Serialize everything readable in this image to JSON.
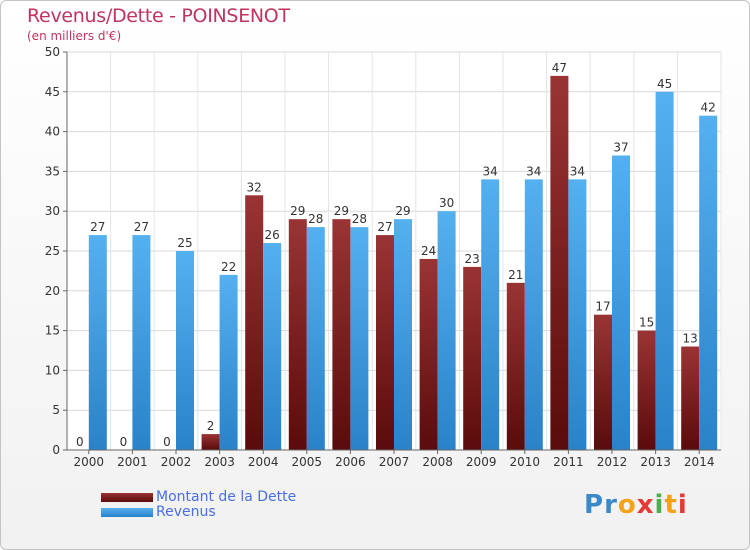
{
  "header": {
    "title": "Revenus/Dette - POINSENOT",
    "subtitle": "(en milliers d'€)"
  },
  "chart_data": {
    "type": "bar",
    "categories": [
      "2000",
      "2001",
      "2002",
      "2003",
      "2004",
      "2005",
      "2006",
      "2007",
      "2008",
      "2009",
      "2010",
      "2011",
      "2012",
      "2013",
      "2014"
    ],
    "series": [
      {
        "name": "Montant de la Dette",
        "color": "#7a1a1a",
        "values": [
          0,
          0,
          0,
          2,
          32,
          29,
          29,
          27,
          24,
          23,
          21,
          47,
          17,
          15,
          13
        ]
      },
      {
        "name": "Revenus",
        "color": "#3f9ee3",
        "values": [
          27,
          27,
          25,
          22,
          26,
          28,
          28,
          29,
          30,
          34,
          34,
          34,
          37,
          45,
          42
        ]
      }
    ],
    "yticks": [
      0,
      5,
      10,
      15,
      20,
      25,
      30,
      35,
      40,
      45,
      50
    ],
    "ylim": [
      0,
      50
    ],
    "grid": true,
    "legend_position": "bottom-left"
  },
  "legend": [
    {
      "label": "Montant de la Dette",
      "color": "#7a1a1a"
    },
    {
      "label": "Revenus",
      "color": "#3f9ee3"
    }
  ],
  "logo": {
    "text": "Proxiti"
  }
}
